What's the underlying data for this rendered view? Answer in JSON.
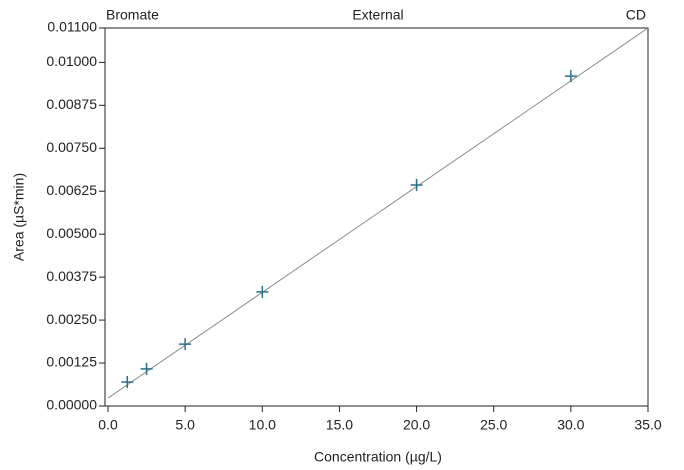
{
  "chart_data": {
    "type": "scatter",
    "header_left": "Bromate",
    "header_center": "External",
    "header_right": "CD",
    "x_label": "Concentration (µg/L)",
    "y_label": "Area (µS*min)",
    "x": [
      1.25,
      2.5,
      5,
      10,
      20,
      30
    ],
    "values": [
      0.0007,
      0.00108,
      0.0018,
      0.00332,
      0.00643,
      0.0096
    ],
    "color": "#2a6f8a",
    "fit_line": {
      "x": [
        0,
        35
      ],
      "values": [
        0.00023,
        0.011
      ],
      "color": "#8c8c8c"
    },
    "xlim": [
      0,
      35
    ],
    "xticks": [
      {
        "value": 0,
        "label": "0.0"
      },
      {
        "value": 5,
        "label": "5.0"
      },
      {
        "value": 10,
        "label": "10.0"
      },
      {
        "value": 15,
        "label": "15.0"
      },
      {
        "value": 20,
        "label": "20.0"
      },
      {
        "value": 25,
        "label": "25.0"
      },
      {
        "value": 30,
        "label": "30.0"
      },
      {
        "value": 35,
        "label": "35.0"
      }
    ],
    "ylim": [
      0,
      0.011
    ],
    "yticks": [
      {
        "value": 0,
        "label": "0.00000"
      },
      {
        "value": 0.00125,
        "label": "0.00125"
      },
      {
        "value": 0.0025,
        "label": "0.00250"
      },
      {
        "value": 0.00375,
        "label": "0.00375"
      },
      {
        "value": 0.005,
        "label": "0.00500"
      },
      {
        "value": 0.00625,
        "label": "0.00625"
      },
      {
        "value": 0.0075,
        "label": "0.00750"
      },
      {
        "value": 0.00875,
        "label": "0.00875"
      },
      {
        "value": 0.01,
        "label": "0.01000"
      },
      {
        "value": 0.011,
        "label": "0.01100"
      }
    ]
  }
}
